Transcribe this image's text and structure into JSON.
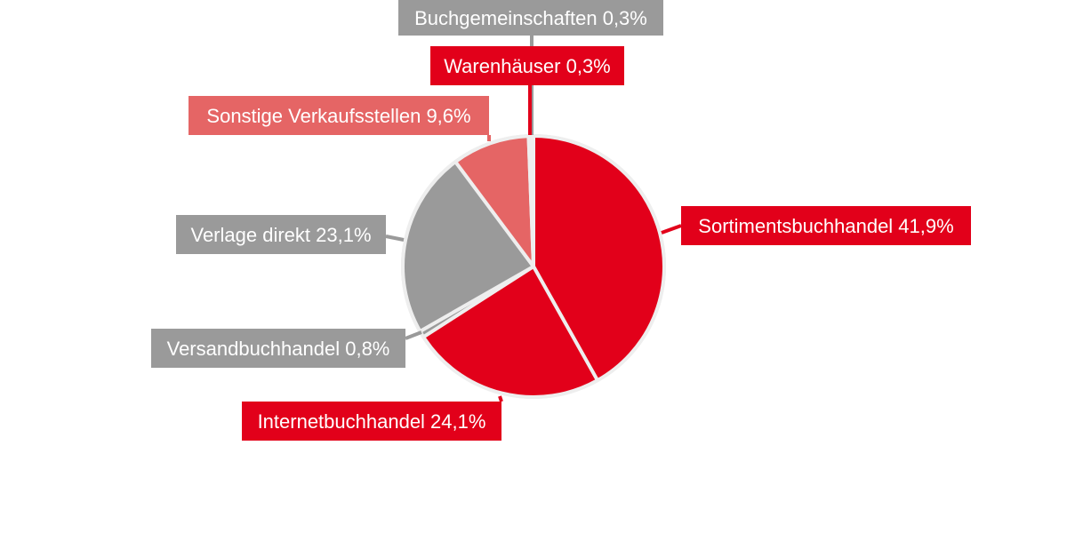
{
  "chart_data": {
    "type": "pie",
    "title": "",
    "start_angle_deg": 0,
    "direction": "clockwise",
    "slices": [
      {
        "label": "Sortimentsbuchhandel",
        "value": 41.9,
        "display": "Sortimentsbuchhandel 41,9%",
        "color": "#e2001a"
      },
      {
        "label": "Internetbuchhandel",
        "value": 24.1,
        "display": "Internetbuchhandel 24,1%",
        "color": "#e2001a"
      },
      {
        "label": "Versandbuchhandel",
        "value": 0.8,
        "display": "Versandbuchhandel 0,8%",
        "color": "#9a9a9a"
      },
      {
        "label": "Verlage direkt",
        "value": 23.1,
        "display": "Verlage direkt 23,1%",
        "color": "#9a9a9a"
      },
      {
        "label": "Sonstige Verkaufsstellen",
        "value": 9.6,
        "display": "Sonstige Verkaufsstellen 9,6%",
        "color": "#e56565"
      },
      {
        "label": "Buchgemeinschaften",
        "value": 0.3,
        "display": "Buchgemeinschaften 0,3%",
        "color": "#9a9a9a"
      },
      {
        "label": "Warenhäuser",
        "value": 0.3,
        "display": "Warenhäuser 0,3%",
        "color": "#e2001a"
      }
    ]
  }
}
